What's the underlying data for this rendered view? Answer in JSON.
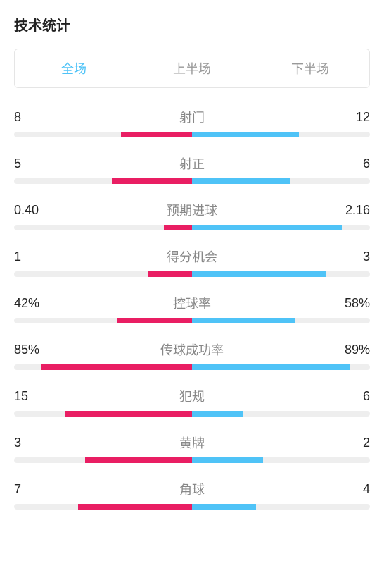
{
  "title": "技术统计",
  "tabs": [
    {
      "label": "全场",
      "active": true
    },
    {
      "label": "上半场",
      "active": false
    },
    {
      "label": "下半场",
      "active": false
    }
  ],
  "colors": {
    "left_bar": "#e91e63",
    "right_bar": "#4fc3f7",
    "track": "#eeeeee",
    "active_tab": "#4fc3f7",
    "inactive_tab": "#999999",
    "text_primary": "#222222",
    "text_secondary": "#888888"
  },
  "stats": [
    {
      "label": "射门",
      "left_display": "8",
      "right_display": "12",
      "left_pct": 40,
      "right_pct": 60
    },
    {
      "label": "射正",
      "left_display": "5",
      "right_display": "6",
      "left_pct": 45,
      "right_pct": 55
    },
    {
      "label": "预期进球",
      "left_display": "0.40",
      "right_display": "2.16",
      "left_pct": 16,
      "right_pct": 84
    },
    {
      "label": "得分机会",
      "left_display": "1",
      "right_display": "3",
      "left_pct": 25,
      "right_pct": 75
    },
    {
      "label": "控球率",
      "left_display": "42%",
      "right_display": "58%",
      "left_pct": 42,
      "right_pct": 58
    },
    {
      "label": "传球成功率",
      "left_display": "85%",
      "right_display": "89%",
      "left_pct": 85,
      "right_pct": 89
    },
    {
      "label": "犯规",
      "left_display": "15",
      "right_display": "6",
      "left_pct": 71,
      "right_pct": 29
    },
    {
      "label": "黄牌",
      "left_display": "3",
      "right_display": "2",
      "left_pct": 60,
      "right_pct": 40
    },
    {
      "label": "角球",
      "left_display": "7",
      "right_display": "4",
      "left_pct": 64,
      "right_pct": 36
    }
  ]
}
